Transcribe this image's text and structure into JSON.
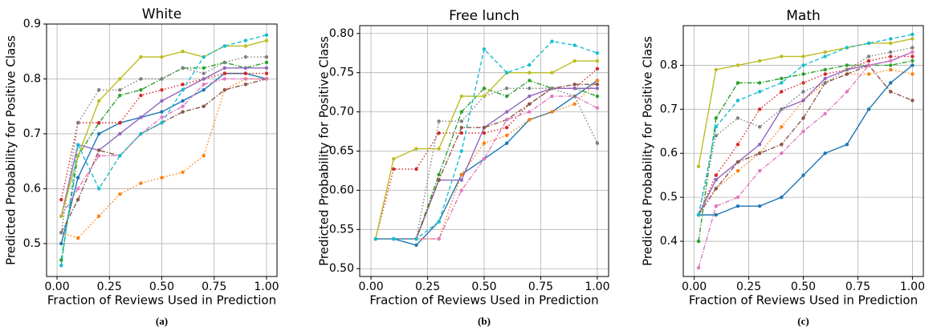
{
  "chart_data": [
    {
      "type": "line",
      "title": "White",
      "xlabel": "Fraction of Reviews Used in Prediction",
      "ylabel": "Predicted Probability for Positive Class",
      "caption": "(a)",
      "x": [
        0.02,
        0.1,
        0.2,
        0.3,
        0.4,
        0.5,
        0.6,
        0.7,
        0.8,
        0.9,
        1.0
      ],
      "xlim": [
        -0.05,
        1.05
      ],
      "xticks": [
        {
          "value": 0,
          "label": "0.00"
        },
        {
          "value": 0.25,
          "label": "0.25"
        },
        {
          "value": 0.5,
          "label": "0.50"
        },
        {
          "value": 0.75,
          "label": "0.75"
        },
        {
          "value": 1,
          "label": "1.00"
        }
      ],
      "ylim": [
        0.44,
        0.9
      ],
      "yticks": [
        0.5,
        0.6,
        0.7,
        0.8,
        0.9
      ],
      "grid": true,
      "series": [
        {
          "color": "#1f77b4",
          "linestyle": "solid",
          "values": [
            0.5,
            0.62,
            0.7,
            0.72,
            0.73,
            0.74,
            0.76,
            0.78,
            0.81,
            0.81,
            0.8
          ]
        },
        {
          "color": "#ff7f0e",
          "linestyle": "dotted",
          "values": [
            0.52,
            0.51,
            0.55,
            0.59,
            0.61,
            0.62,
            0.63,
            0.66,
            0.78,
            0.8,
            0.8
          ]
        },
        {
          "color": "#2ca02c",
          "linestyle": "dashdot",
          "values": [
            0.47,
            0.66,
            0.72,
            0.77,
            0.78,
            0.8,
            0.82,
            0.82,
            0.83,
            0.82,
            0.83
          ]
        },
        {
          "color": "#d62728",
          "linestyle": "dotted",
          "values": [
            0.58,
            0.72,
            0.72,
            0.72,
            0.77,
            0.78,
            0.79,
            0.8,
            0.81,
            0.81,
            0.81
          ]
        },
        {
          "color": "#9467bd",
          "linestyle": "solid",
          "values": [
            0.55,
            0.68,
            0.67,
            0.7,
            0.73,
            0.76,
            0.78,
            0.8,
            0.82,
            0.82,
            0.82
          ]
        },
        {
          "color": "#8c564b",
          "linestyle": "dashdot",
          "values": [
            0.52,
            0.58,
            0.67,
            0.66,
            0.7,
            0.72,
            0.74,
            0.75,
            0.78,
            0.79,
            0.8
          ]
        },
        {
          "color": "#e377c2",
          "linestyle": "dashdot",
          "values": [
            0.55,
            0.6,
            0.66,
            0.66,
            0.7,
            0.73,
            0.75,
            0.79,
            0.8,
            0.8,
            0.8
          ]
        },
        {
          "color": "#7f7f7f",
          "linestyle": "dotted",
          "values": [
            0.52,
            0.72,
            0.78,
            0.78,
            0.8,
            0.8,
            0.82,
            0.81,
            0.83,
            0.84,
            0.84
          ]
        },
        {
          "color": "#bcbd22",
          "linestyle": "solid",
          "values": [
            0.55,
            0.66,
            0.76,
            0.8,
            0.84,
            0.84,
            0.85,
            0.84,
            0.86,
            0.86,
            0.87
          ]
        },
        {
          "color": "#17becf",
          "linestyle": "dashed",
          "values": [
            0.46,
            0.68,
            0.6,
            0.66,
            0.7,
            0.72,
            0.78,
            0.84,
            0.86,
            0.87,
            0.88
          ]
        }
      ]
    },
    {
      "type": "line",
      "title": "Free lunch",
      "xlabel": "Fraction of Reviews Used in Prediction",
      "ylabel": "Predicted Probability for Positive Class",
      "caption": "(b)",
      "x": [
        0.02,
        0.1,
        0.2,
        0.3,
        0.4,
        0.5,
        0.6,
        0.7,
        0.8,
        0.9,
        1.0
      ],
      "xlim": [
        -0.05,
        1.05
      ],
      "xticks": [
        {
          "value": 0,
          "label": "0.00"
        },
        {
          "value": 0.25,
          "label": "0.25"
        },
        {
          "value": 0.5,
          "label": "0.50"
        },
        {
          "value": 0.75,
          "label": "0.75"
        },
        {
          "value": 1,
          "label": "1.00"
        }
      ],
      "ylim": [
        0.49,
        0.81
      ],
      "yticks": [
        {
          "value": 0.5,
          "label": "0.50"
        },
        0.55,
        {
          "value": 0.6,
          "label": "0.60"
        },
        0.65,
        {
          "value": 0.7,
          "label": "0.70"
        },
        0.75,
        {
          "value": 0.8,
          "label": "0.80"
        }
      ],
      "grid": true,
      "series": [
        {
          "color": "#1f77b4",
          "linestyle": "solid",
          "values": [
            0.538,
            0.538,
            0.53,
            0.56,
            0.62,
            0.64,
            0.66,
            0.69,
            0.7,
            0.72,
            0.74
          ]
        },
        {
          "color": "#ff7f0e",
          "linestyle": "dotted",
          "values": [
            0.538,
            0.538,
            0.538,
            0.538,
            0.62,
            0.66,
            0.67,
            0.69,
            0.7,
            0.71,
            0.74
          ]
        },
        {
          "color": "#2ca02c",
          "linestyle": "dashdot",
          "values": [
            0.538,
            0.538,
            0.538,
            0.62,
            0.7,
            0.73,
            0.72,
            0.74,
            0.73,
            0.73,
            0.72
          ]
        },
        {
          "color": "#d62728",
          "linestyle": "dotted",
          "values": [
            0.538,
            0.627,
            0.627,
            0.673,
            0.673,
            0.673,
            0.68,
            0.71,
            0.73,
            0.73,
            0.755
          ]
        },
        {
          "color": "#9467bd",
          "linestyle": "solid",
          "values": [
            0.538,
            0.538,
            0.538,
            0.613,
            0.613,
            0.68,
            0.7,
            0.72,
            0.73,
            0.73,
            0.73
          ]
        },
        {
          "color": "#8c564b",
          "linestyle": "dashdot",
          "values": [
            0.538,
            0.538,
            0.538,
            0.613,
            0.68,
            0.68,
            0.69,
            0.71,
            0.73,
            0.735,
            0.735
          ]
        },
        {
          "color": "#e377c2",
          "linestyle": "dashdot",
          "values": [
            0.538,
            0.538,
            0.538,
            0.538,
            0.6,
            0.64,
            0.69,
            0.7,
            0.72,
            0.72,
            0.705
          ]
        },
        {
          "color": "#7f7f7f",
          "linestyle": "dotted",
          "values": [
            0.538,
            0.538,
            0.538,
            0.688,
            0.688,
            0.72,
            0.73,
            0.73,
            0.73,
            0.72,
            0.66
          ]
        },
        {
          "color": "#bcbd22",
          "linestyle": "solid",
          "values": [
            0.538,
            0.64,
            0.653,
            0.653,
            0.72,
            0.72,
            0.75,
            0.75,
            0.75,
            0.765,
            0.765
          ]
        },
        {
          "color": "#17becf",
          "linestyle": "dashed",
          "values": [
            0.538,
            0.538,
            0.538,
            0.56,
            0.65,
            0.78,
            0.75,
            0.76,
            0.79,
            0.785,
            0.775
          ]
        }
      ]
    },
    {
      "type": "line",
      "title": "Math",
      "xlabel": "Fraction of Reviews Used in Prediction",
      "ylabel": "Predicted Probability for Positive Class",
      "caption": "(c)",
      "x": [
        0.02,
        0.1,
        0.2,
        0.3,
        0.4,
        0.5,
        0.6,
        0.7,
        0.8,
        0.9,
        1.0
      ],
      "xlim": [
        -0.05,
        1.05
      ],
      "xticks": [
        {
          "value": 0,
          "label": "0.00"
        },
        {
          "value": 0.25,
          "label": "0.25"
        },
        {
          "value": 0.5,
          "label": "0.50"
        },
        {
          "value": 0.75,
          "label": "0.75"
        },
        {
          "value": 1,
          "label": "1.00"
        }
      ],
      "ylim": [
        0.32,
        0.89
      ],
      "yticks": [
        0.4,
        0.5,
        0.6,
        0.7,
        0.8
      ],
      "grid": true,
      "series": [
        {
          "color": "#1f77b4",
          "linestyle": "solid",
          "values": [
            0.46,
            0.46,
            0.48,
            0.48,
            0.5,
            0.55,
            0.6,
            0.62,
            0.7,
            0.76,
            0.8
          ]
        },
        {
          "color": "#ff7f0e",
          "linestyle": "dotted",
          "values": [
            0.46,
            0.52,
            0.56,
            0.6,
            0.66,
            0.72,
            0.76,
            0.78,
            0.78,
            0.79,
            0.78
          ]
        },
        {
          "color": "#2ca02c",
          "linestyle": "dashdot",
          "values": [
            0.4,
            0.68,
            0.76,
            0.76,
            0.77,
            0.78,
            0.79,
            0.8,
            0.8,
            0.8,
            0.81
          ]
        },
        {
          "color": "#d62728",
          "linestyle": "dotted",
          "values": [
            0.46,
            0.55,
            0.62,
            0.7,
            0.74,
            0.76,
            0.78,
            0.79,
            0.81,
            0.82,
            0.82
          ]
        },
        {
          "color": "#9467bd",
          "linestyle": "solid",
          "values": [
            0.46,
            0.54,
            0.58,
            0.62,
            0.7,
            0.72,
            0.77,
            0.79,
            0.8,
            0.81,
            0.83
          ]
        },
        {
          "color": "#8c564b",
          "linestyle": "dashdot",
          "values": [
            0.46,
            0.52,
            0.58,
            0.6,
            0.62,
            0.68,
            0.76,
            0.78,
            0.8,
            0.74,
            0.72
          ]
        },
        {
          "color": "#e377c2",
          "linestyle": "dashdot",
          "values": [
            0.34,
            0.48,
            0.5,
            0.56,
            0.6,
            0.65,
            0.69,
            0.74,
            0.8,
            0.81,
            0.83
          ]
        },
        {
          "color": "#7f7f7f",
          "linestyle": "dotted",
          "values": [
            0.46,
            0.64,
            0.68,
            0.66,
            0.7,
            0.74,
            0.76,
            0.79,
            0.82,
            0.83,
            0.84
          ]
        },
        {
          "color": "#bcbd22",
          "linestyle": "solid",
          "values": [
            0.57,
            0.79,
            0.8,
            0.81,
            0.82,
            0.82,
            0.83,
            0.84,
            0.85,
            0.85,
            0.86
          ]
        },
        {
          "color": "#17becf",
          "linestyle": "dashed",
          "values": [
            0.46,
            0.66,
            0.72,
            0.74,
            0.76,
            0.8,
            0.82,
            0.84,
            0.85,
            0.86,
            0.87
          ]
        }
      ]
    }
  ]
}
